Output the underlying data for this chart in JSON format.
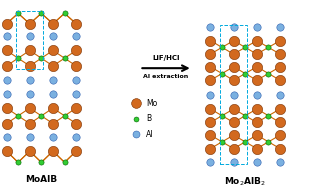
{
  "bg_color": "#ffffff",
  "mo_color": "#d2691e",
  "mo_edge_color": "#7a3000",
  "b_color": "#32cd32",
  "b_edge_color": "#006400",
  "al_color": "#7ab0e0",
  "al_edge_color": "#3060b0",
  "bond_color_mo_b": "#cc6600",
  "bond_color_b_b": "#22aa22",
  "dashed_box_color": "#00aadd",
  "arrow_text1": "LiF/HCl",
  "arrow_text2": "Al extraction",
  "label_left": "MoAlB",
  "label_right": "Mo$_2$AlB$_2$",
  "legend_mo": "Mo",
  "legend_b": "B",
  "legend_al": "Al",
  "mo_s": 55,
  "b_s": 14,
  "al_s": 28
}
